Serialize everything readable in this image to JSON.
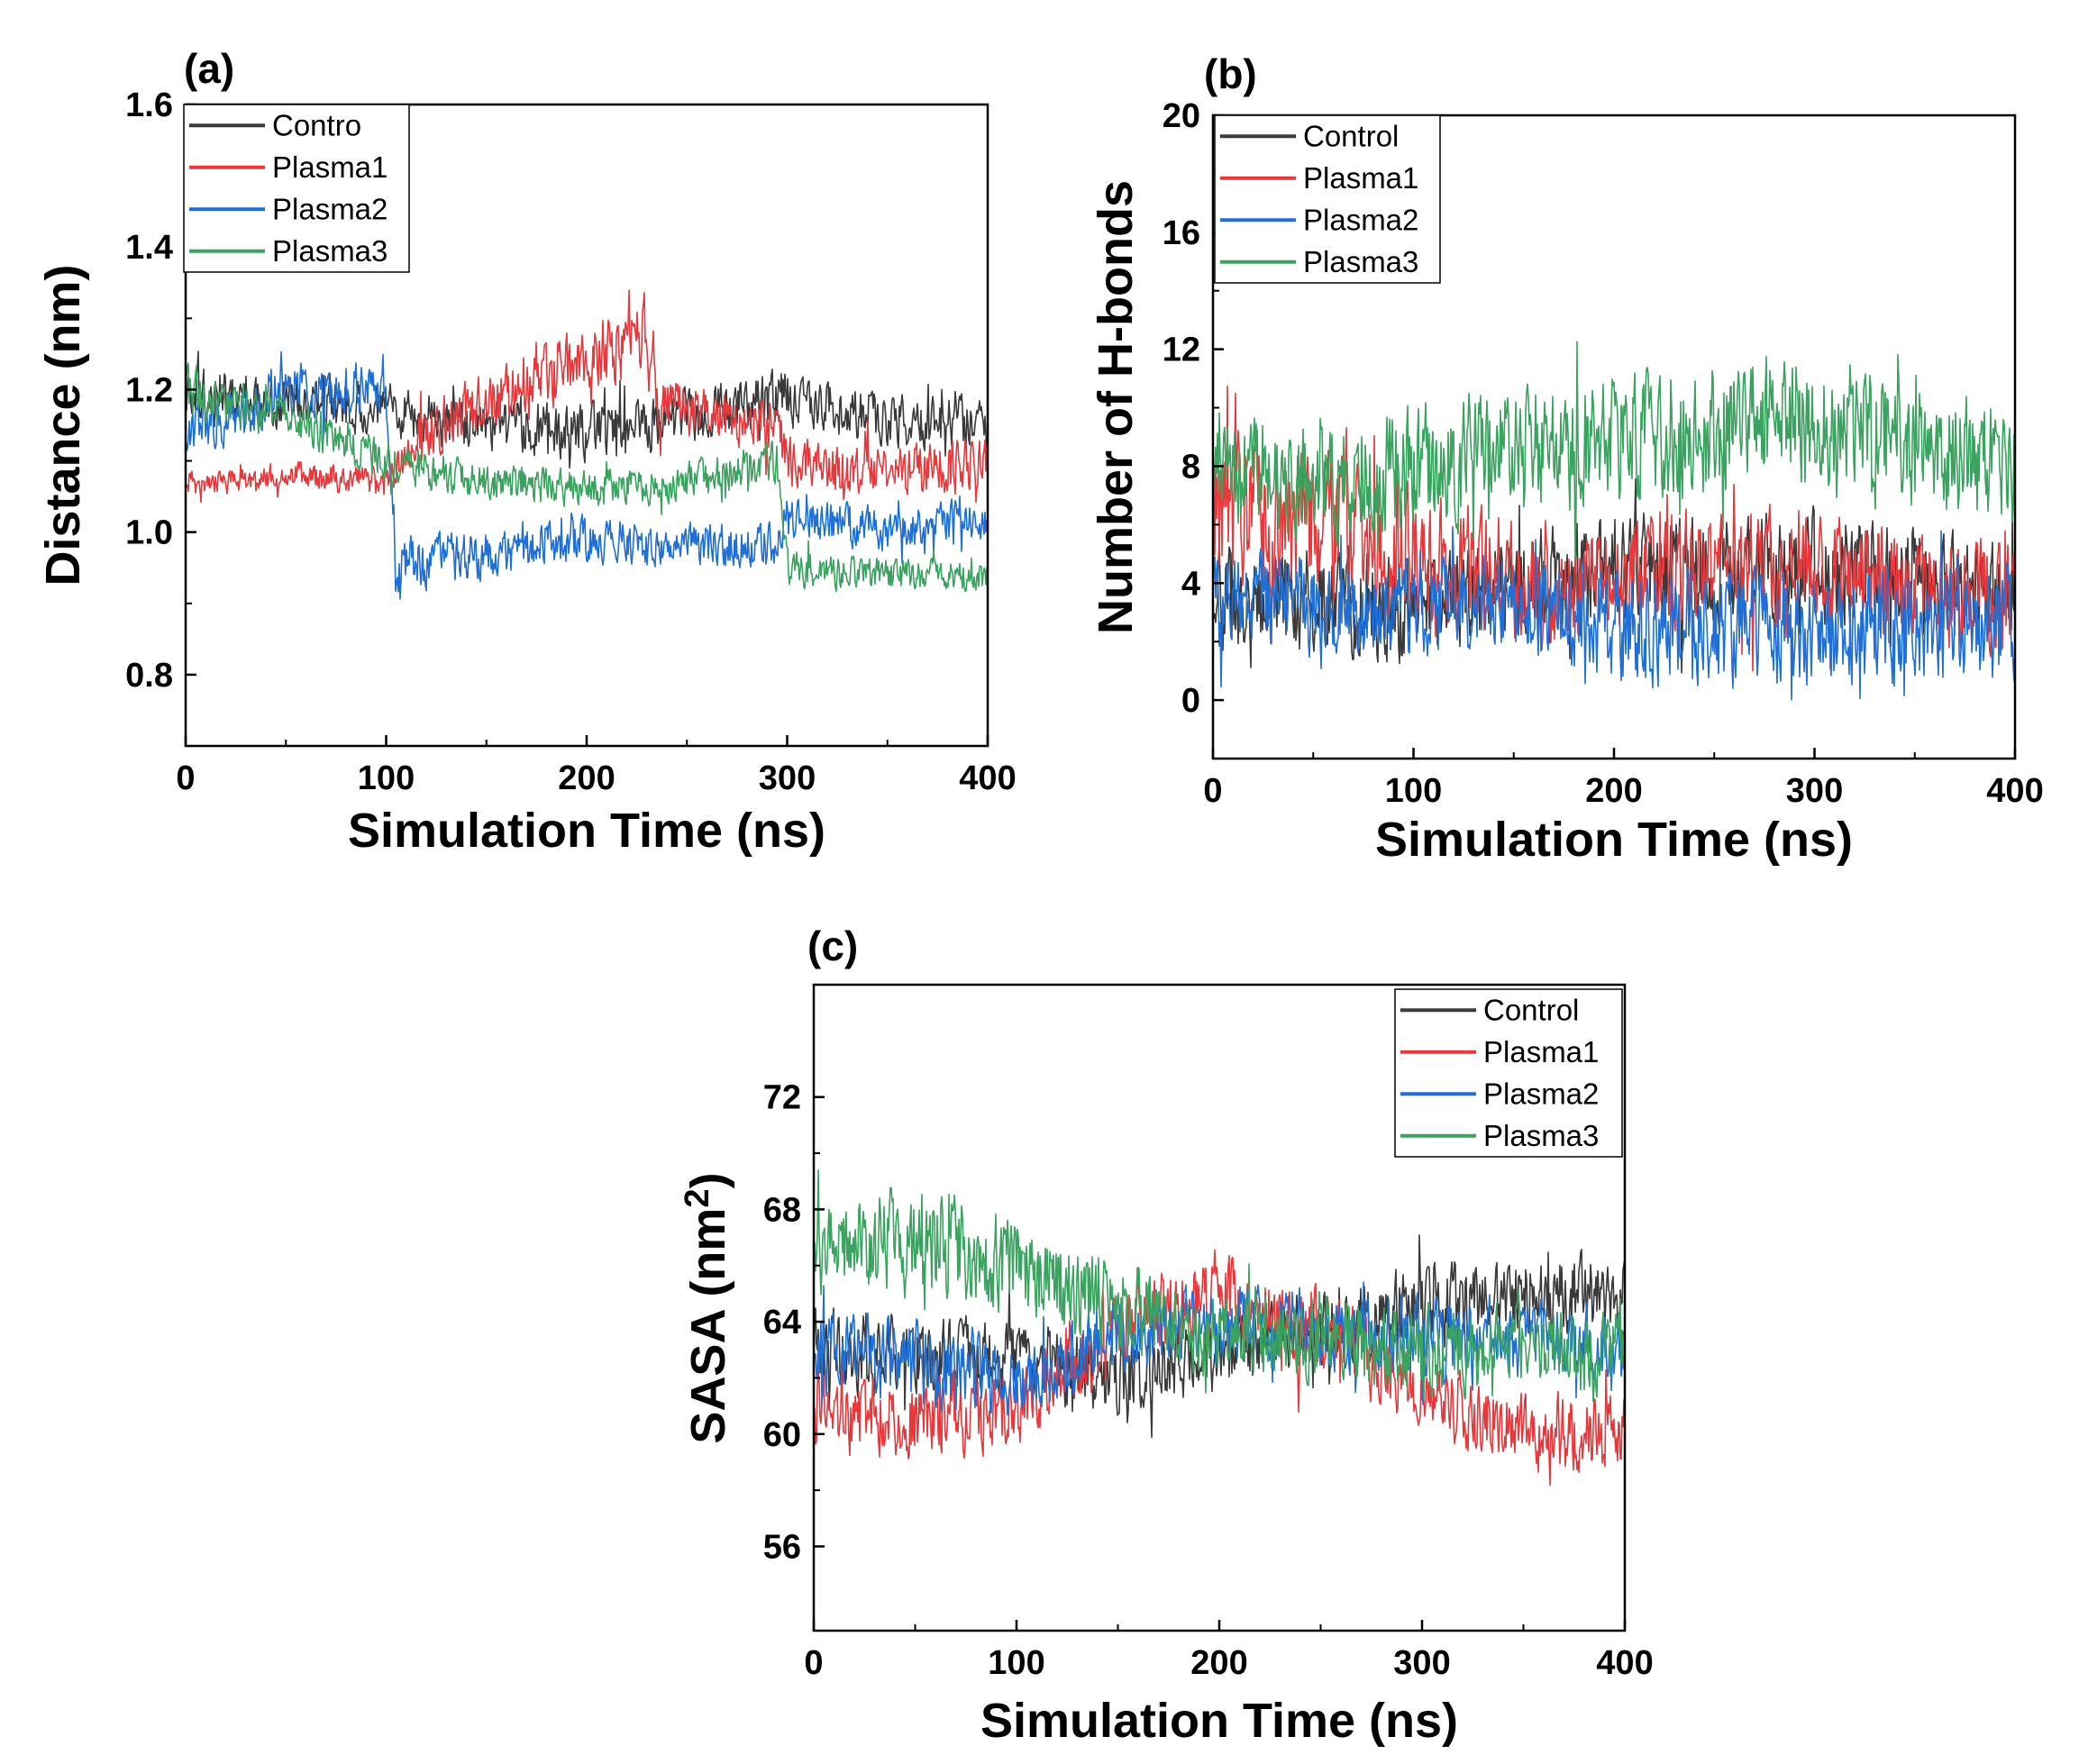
{
  "figure": {
    "background": "#ffffff"
  },
  "chart_data": [
    {
      "id": "a",
      "type": "line",
      "panel_label": "(a)",
      "xlabel": "Simulation Time (ns)",
      "ylabel": "Distance (nm)",
      "xlim": [
        0,
        400
      ],
      "ylim": [
        0.7,
        1.6
      ],
      "xticks": [
        0,
        100,
        200,
        300,
        400
      ],
      "yticks": [
        0.8,
        1.0,
        1.2,
        1.4,
        1.6
      ],
      "ytick_labels": [
        "0.8",
        "1.0",
        "1.2",
        "1.4",
        "1.6"
      ],
      "legend_position": "top-left",
      "series": [
        {
          "name": "Contro",
          "color": "#3a3a3a",
          "x": [
            0,
            50,
            100,
            150,
            200,
            250,
            300,
            350,
            400
          ],
          "mean": [
            1.2,
            1.18,
            1.17,
            1.15,
            1.14,
            1.16,
            1.19,
            1.16,
            1.15
          ],
          "spread": [
            0.05,
            0.05,
            0.05,
            0.05,
            0.05,
            0.05,
            0.05,
            0.05,
            0.05
          ]
        },
        {
          "name": "Plasma1",
          "color": "#e8383b",
          "x": [
            0,
            50,
            100,
            120,
            150,
            200,
            230,
            235,
            270,
            295,
            300,
            350,
            400
          ],
          "mean": [
            1.07,
            1.08,
            1.07,
            1.14,
            1.18,
            1.24,
            1.28,
            1.18,
            1.16,
            1.15,
            1.1,
            1.08,
            1.1
          ],
          "spread": [
            0.025,
            0.025,
            0.03,
            0.05,
            0.06,
            0.06,
            0.07,
            0.05,
            0.05,
            0.05,
            0.05,
            0.05,
            0.05
          ]
        },
        {
          "name": "Plasma2",
          "color": "#1f6fd6",
          "x": [
            0,
            50,
            100,
            105,
            150,
            200,
            250,
            295,
            300,
            350,
            400
          ],
          "mean": [
            1.14,
            1.2,
            1.2,
            0.95,
            0.97,
            0.99,
            0.98,
            0.98,
            1.02,
            1.0,
            1.02
          ],
          "spread": [
            0.05,
            0.05,
            0.05,
            0.05,
            0.05,
            0.04,
            0.04,
            0.04,
            0.04,
            0.04,
            0.04
          ]
        },
        {
          "name": "Plasma3",
          "color": "#3aa35f",
          "x": [
            0,
            50,
            100,
            150,
            200,
            250,
            295,
            300,
            350,
            400
          ],
          "mean": [
            1.2,
            1.16,
            1.1,
            1.07,
            1.06,
            1.07,
            1.1,
            0.95,
            0.94,
            0.94
          ],
          "spread": [
            0.05,
            0.04,
            0.04,
            0.035,
            0.035,
            0.035,
            0.04,
            0.035,
            0.03,
            0.03
          ]
        }
      ]
    },
    {
      "id": "b",
      "type": "line",
      "panel_label": "(b)",
      "xlabel": "Simulation Time (ns)",
      "ylabel": "Number of H-bonds",
      "xlim": [
        0,
        400
      ],
      "ylim": [
        -2,
        20
      ],
      "xticks": [
        0,
        100,
        200,
        300,
        400
      ],
      "yticks": [
        0,
        4,
        8,
        12,
        16,
        20
      ],
      "ytick_labels": [
        "0",
        "4",
        "8",
        "12",
        "16",
        "20"
      ],
      "legend_position": "top-left",
      "series": [
        {
          "name": "Control",
          "color": "#3a3a3a",
          "x": [
            0,
            100,
            170,
            200,
            300,
            400
          ],
          "mean": [
            3.5,
            3.2,
            4.0,
            4.5,
            4.5,
            3.5
          ],
          "spread": [
            2.3,
            2.3,
            2.5,
            2.5,
            2.5,
            2.3
          ]
        },
        {
          "name": "Plasma1",
          "color": "#e8383b",
          "x": [
            0,
            100,
            170,
            200,
            300,
            400
          ],
          "mean": [
            6.5,
            5.0,
            3.5,
            4.5,
            4.5,
            3.5
          ],
          "spread": [
            3.5,
            3.0,
            2.5,
            2.5,
            2.5,
            2.5
          ]
        },
        {
          "name": "Plasma2",
          "color": "#1f6fd6",
          "x": [
            0,
            100,
            150,
            200,
            300,
            400
          ],
          "mean": [
            3.5,
            3.2,
            3.5,
            2.5,
            2.5,
            2.5
          ],
          "spread": [
            2.2,
            2.2,
            2.5,
            2.5,
            2.5,
            2.5
          ]
        },
        {
          "name": "Plasma3",
          "color": "#3aa35f",
          "x": [
            0,
            50,
            100,
            200,
            300,
            400
          ],
          "mean": [
            8.0,
            7.5,
            8.0,
            9.0,
            9.5,
            8.0
          ],
          "spread": [
            2.5,
            2.5,
            2.8,
            2.8,
            3.0,
            2.8
          ]
        }
      ]
    },
    {
      "id": "c",
      "type": "line",
      "panel_label": "(c)",
      "xlabel": "Simulation Time (ns)",
      "ylabel": "SASA (nm",
      "ylabel_sup": "2",
      "ylabel_close": ")",
      "xlim": [
        0,
        400
      ],
      "ylim": [
        53,
        76
      ],
      "xticks": [
        0,
        100,
        200,
        300,
        400
      ],
      "yticks": [
        56,
        60,
        64,
        68,
        72
      ],
      "ytick_labels": [
        "56",
        "60",
        "64",
        "68",
        "72"
      ],
      "legend_position": "top-right",
      "series": [
        {
          "name": "Control",
          "color": "#3a3a3a",
          "x": [
            0,
            100,
            150,
            200,
            300,
            350,
            400
          ],
          "mean": [
            63.0,
            62.5,
            62.0,
            63.0,
            64.5,
            65.0,
            65.0
          ],
          "spread": [
            1.8,
            1.8,
            1.8,
            1.8,
            1.8,
            1.8,
            1.8
          ]
        },
        {
          "name": "Plasma1",
          "color": "#e8383b",
          "x": [
            0,
            50,
            100,
            150,
            200,
            270,
            300,
            350,
            400
          ],
          "mean": [
            61.0,
            60.5,
            61.0,
            64.0,
            65.0,
            63.0,
            61.5,
            60.0,
            60.0
          ],
          "spread": [
            1.8,
            1.8,
            1.8,
            2.2,
            2.0,
            2.0,
            1.8,
            1.8,
            1.8
          ]
        },
        {
          "name": "Plasma2",
          "color": "#1f6fd6",
          "x": [
            0,
            50,
            100,
            150,
            200,
            300,
            400
          ],
          "mean": [
            63.0,
            62.5,
            62.0,
            63.5,
            64.0,
            63.5,
            63.0
          ],
          "spread": [
            1.8,
            2.0,
            1.8,
            1.8,
            1.8,
            1.8,
            1.8
          ]
        },
        {
          "name": "Plasma3",
          "color": "#3aa35f",
          "x": [
            0,
            50,
            100,
            150,
            200,
            250,
            300,
            400
          ],
          "mean": [
            66.5,
            67.0,
            66.0,
            64.5,
            63.5,
            63.5,
            63.0,
            63.0
          ],
          "spread": [
            2.3,
            2.5,
            2.3,
            2.0,
            2.0,
            2.0,
            2.0,
            2.0
          ]
        }
      ]
    }
  ]
}
